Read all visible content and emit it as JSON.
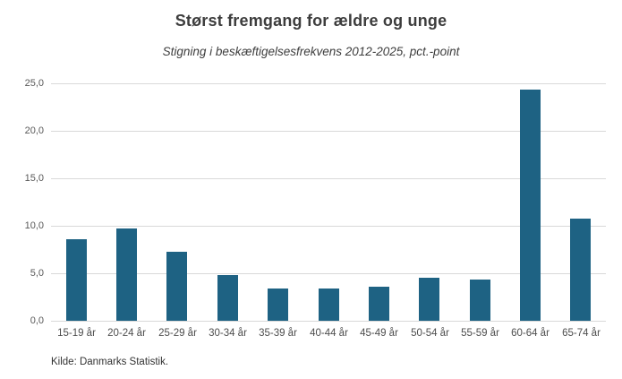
{
  "header": {
    "title": "Størst fremgang for ældre og unge",
    "subtitle": "Stigning i beskæftigelsesfrekvens 2012-2025, pct.-point"
  },
  "footer": {
    "source": "Kilde: Danmarks Statistik."
  },
  "colors": {
    "bar": "#1e6283",
    "gridline": "#d9d9d9",
    "title_text": "#3d3d3d",
    "axis_text": "#595959",
    "background": "#ffffff"
  },
  "chart_data": {
    "type": "bar",
    "title": "Størst fremgang for ældre og unge",
    "subtitle": "Stigning i beskæftigelsesfrekvens 2012-2025, pct.-point",
    "categories": [
      "15-19 år",
      "20-24 år",
      "25-29 år",
      "30-34 år",
      "35-39 år",
      "40-44 år",
      "45-49 år",
      "50-54 år",
      "55-59 år",
      "60-64 år",
      "65-74 år"
    ],
    "values": [
      8.6,
      9.7,
      7.3,
      4.8,
      3.4,
      3.4,
      3.6,
      4.5,
      4.3,
      24.3,
      10.8
    ],
    "xlabel": "",
    "ylabel": "",
    "ylim": [
      0,
      25
    ],
    "ytick_step": 5,
    "ytick_labels": [
      "0,0",
      "5,0",
      "10,0",
      "15,0",
      "20,0",
      "25,0"
    ],
    "grid": true,
    "legend_position": "none",
    "annotation": "Kilde: Danmarks Statistik."
  }
}
